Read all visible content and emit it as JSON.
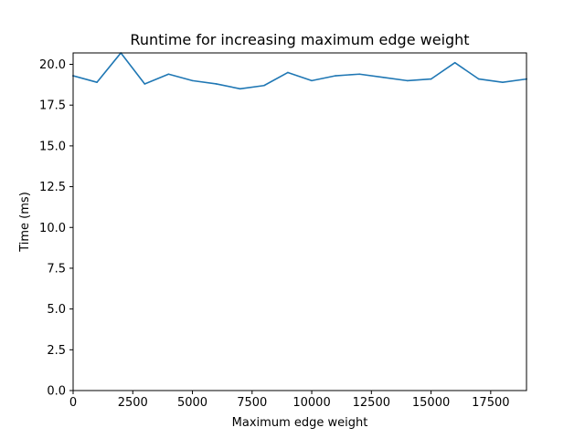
{
  "chart_data": {
    "type": "line",
    "title": "Runtime for increasing maximum edge weight",
    "xlabel": "Maximum edge weight",
    "ylabel": "Time (ms)",
    "xlim": [
      0,
      19000
    ],
    "ylim": [
      0,
      20.7
    ],
    "x_ticks": [
      0,
      2500,
      5000,
      7500,
      10000,
      12500,
      15000,
      17500
    ],
    "x_tick_labels": [
      "0",
      "2500",
      "5000",
      "7500",
      "10000",
      "12500",
      "15000",
      "17500"
    ],
    "y_ticks": [
      0,
      2.5,
      5,
      7.5,
      10,
      12.5,
      15,
      17.5,
      20
    ],
    "y_tick_labels": [
      "0.0",
      "2.5",
      "5.0",
      "7.5",
      "10.0",
      "12.5",
      "15.0",
      "17.5",
      "20.0"
    ],
    "grid": false,
    "series": [
      {
        "color": "#1f77b4",
        "x": [
          0,
          1000,
          2000,
          3000,
          4000,
          5000,
          6000,
          7000,
          8000,
          9000,
          10000,
          11000,
          12000,
          13000,
          14000,
          15000,
          16000,
          17000,
          18000,
          19000
        ],
        "y": [
          19.3,
          18.9,
          20.7,
          18.8,
          19.4,
          19.0,
          18.8,
          18.5,
          18.7,
          19.5,
          19.0,
          19.3,
          19.4,
          19.2,
          19.0,
          19.1,
          20.1,
          19.1,
          18.9,
          19.1
        ]
      }
    ]
  }
}
